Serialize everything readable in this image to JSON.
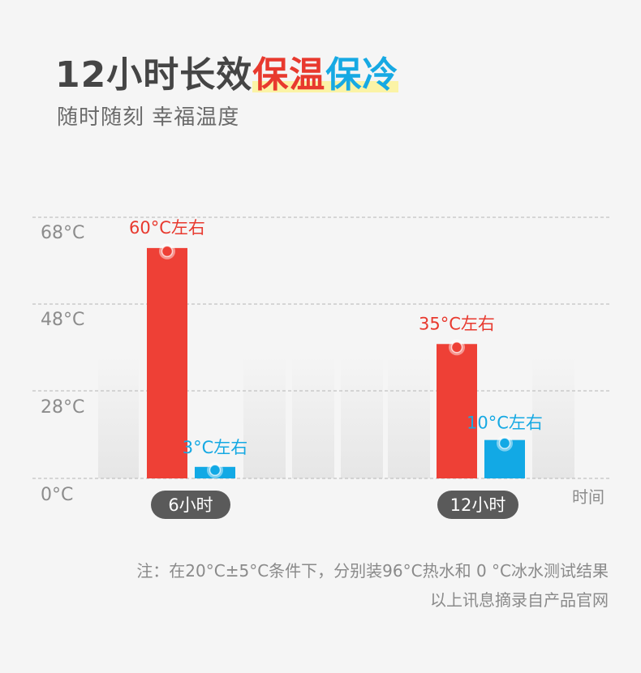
{
  "header": {
    "title_prefix": "12小时长效",
    "title_hl1": "保温",
    "title_hl2": "保冷",
    "subtitle": "随时随刻 幸福温度"
  },
  "notes": {
    "line1": "注：在20°C±5°C条件下，分别装96°C热水和 0 °C冰水测试结果",
    "line2": "以上讯息摘录自产品官网"
  },
  "colors": {
    "hot": "#ee4036",
    "cold": "#12a9e5",
    "hot_label": "#e8392e",
    "cold_label": "#16a9e3",
    "pill": "#5a5a5a",
    "grid": "#b5b5b5",
    "axis_text": "#8c8c8c"
  },
  "chart_data": {
    "type": "bar",
    "categories": [
      "6小时",
      "12小时"
    ],
    "series": [
      {
        "values": [
          60,
          35
        ],
        "labels": [
          "60°C左右",
          "35°C左右"
        ]
      },
      {
        "values": [
          3,
          10
        ],
        "labels": [
          "3°C左右",
          "10°C左右"
        ]
      }
    ],
    "y_ticks": [
      "0°C",
      "28°C",
      "48°C",
      "68°C"
    ],
    "xlabel": "时间",
    "grid": true
  }
}
